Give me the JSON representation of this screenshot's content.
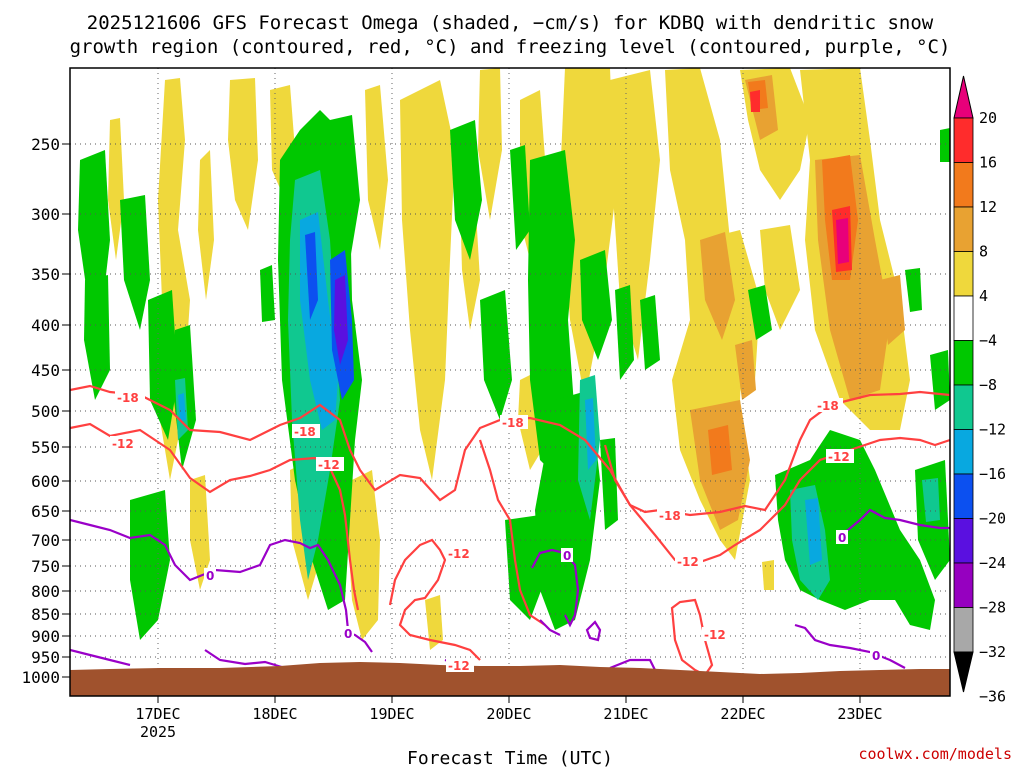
{
  "chart_data": {
    "type": "heatmap",
    "title_line1": "2025121606 GFS Forecast Omega (shaded, −cm/s) for KDBQ with dendritic snow",
    "title_line2": "growth region (contoured, red, °C) and freezing level (contoured, purple, °C)",
    "xlabel": "Forecast Time (UTC)",
    "x_ticks": [
      "17DEC",
      "18DEC",
      "19DEC",
      "20DEC",
      "21DEC",
      "22DEC",
      "23DEC"
    ],
    "x_year": "2025",
    "y_ticks": [
      "250",
      "300",
      "350",
      "400",
      "450",
      "500",
      "550",
      "600",
      "650",
      "700",
      "750",
      "800",
      "850",
      "900",
      "950",
      "1000"
    ],
    "y_axis": "pressure (hPa), decreasing upward",
    "grid": true,
    "colorbar": {
      "labels": [
        "20",
        "16",
        "12",
        "8",
        "4",
        "−4",
        "−8",
        "−12",
        "−16",
        "−20",
        "−24",
        "−28",
        "−32",
        "−36"
      ],
      "colors": [
        "#e8007a",
        "#ff2c2c",
        "#f27a1c",
        "#e8a232",
        "#efd83c",
        "#ffffff",
        "#00c800",
        "#10c890",
        "#08a8e0",
        "#0c50f0",
        "#5a10e0",
        "#9600c0",
        "#a8a8a8",
        "#000000"
      ]
    },
    "red_contour_labels": [
      "-18",
      "-12"
    ],
    "purple_contour_labels": [
      "0"
    ],
    "terrain_color": "#a0522d",
    "credit": "coolwx.com/models"
  }
}
